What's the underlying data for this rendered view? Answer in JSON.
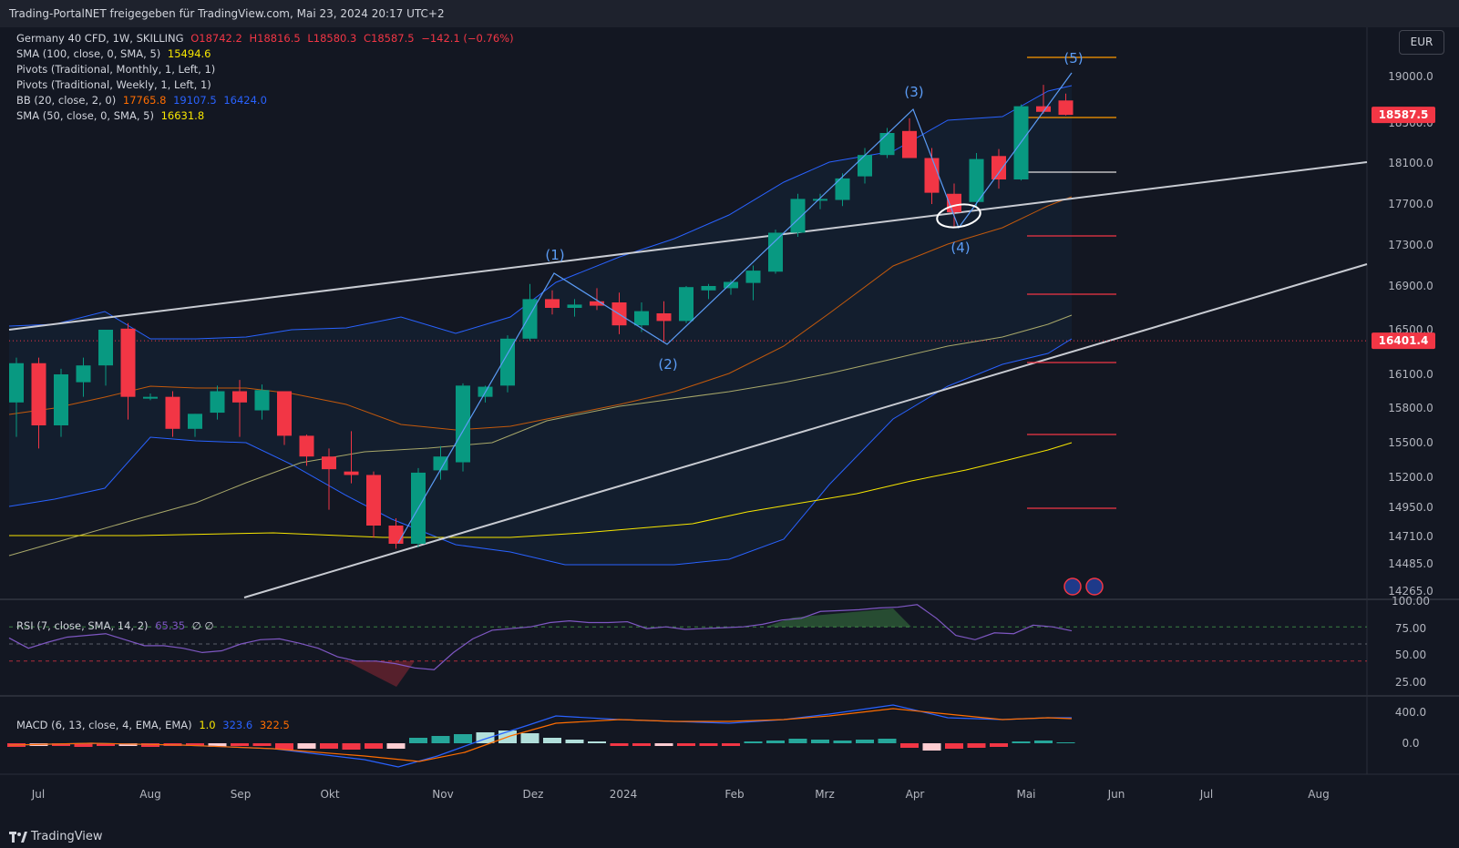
{
  "header": {
    "title": "Trading-PortalNET freigegeben für TradingView.com, Mai 23, 2024 20:17 UTC+2"
  },
  "currency_button": {
    "label": "EUR"
  },
  "legend": {
    "main": {
      "name": "Germany 40 CFD, 1W, SKILLING",
      "o": "O18742.2",
      "h": "H18816.5",
      "l": "L18580.3",
      "c": "C18587.5",
      "chg": "−142.1 (−0.76%)"
    },
    "sma100": {
      "label": "SMA (100, close, 0, SMA, 5)",
      "value": "15494.6"
    },
    "pivots_monthly": {
      "label": "Pivots (Traditional, Monthly, 1, Left, 1)"
    },
    "pivots_weekly": {
      "label": "Pivots (Traditional, Weekly, 1, Left, 1)"
    },
    "bb": {
      "label": "BB (20, close, 2, 0)",
      "basis": "17765.8",
      "upper": "19107.5",
      "lower": "16424.0"
    },
    "sma50": {
      "label": "SMA (50, close, 0, SMA, 5)",
      "value": "16631.8"
    },
    "rsi": {
      "label": "RSI (7, close, SMA, 14, 2)",
      "value": "65.35",
      "extra": "∅ ∅"
    },
    "macd": {
      "label": "MACD (6, 13, close, 4, EMA, EMA)",
      "hist": "1.0",
      "macd": "323.6",
      "signal": "322.5"
    }
  },
  "footer": {
    "brand": "TradingView"
  },
  "colors": {
    "up": "#089981",
    "down": "#f23645",
    "bb_upper": "#2962ff",
    "bb_basis": "#ff6d00",
    "sma100": "#f7e600",
    "sma50": "#a8a86a",
    "rsi": "#7e57c2",
    "macd": "#2962ff",
    "signal": "#ff6d00",
    "last_price_tag": "#f23645"
  },
  "chart_data": [
    {
      "type": "candlestick",
      "x_labels": [
        "Jul",
        "Aug",
        "Sep",
        "Okt",
        "Nov",
        "Dez",
        "2024",
        "Feb",
        "Mrz",
        "Apr",
        "Mai",
        "Jun",
        "Jul",
        "Aug"
      ],
      "y_ticks": [
        "19000.0",
        "18500.0",
        "18100.0",
        "17700.0",
        "17300.0",
        "16900.0",
        "16500.0",
        "16100.0",
        "15800.0",
        "15500.0",
        "15200.0",
        "14950.0",
        "14710.0",
        "14485.0",
        "14265.0"
      ],
      "price_tags": [
        {
          "label": "18587.5",
          "value": 18587.5,
          "color": "#f23645"
        },
        {
          "label": "16401.4",
          "value": 16401.4,
          "color": "#f23645"
        }
      ],
      "candles": [
        {
          "o": 15850,
          "h": 16250,
          "l": 15550,
          "c": 16200
        },
        {
          "o": 16200,
          "h": 16250,
          "l": 15450,
          "c": 15650
        },
        {
          "o": 15650,
          "h": 16150,
          "l": 15550,
          "c": 16100
        },
        {
          "o": 16030,
          "h": 16250,
          "l": 15900,
          "c": 16180
        },
        {
          "o": 16180,
          "h": 16480,
          "l": 16000,
          "c": 16500
        },
        {
          "o": 16510,
          "h": 16560,
          "l": 15700,
          "c": 15900
        },
        {
          "o": 15900,
          "h": 15930,
          "l": 15870,
          "c": 15900
        },
        {
          "o": 15900,
          "h": 15950,
          "l": 15550,
          "c": 15620
        },
        {
          "o": 15620,
          "h": 15750,
          "l": 15550,
          "c": 15750
        },
        {
          "o": 15760,
          "h": 16000,
          "l": 15700,
          "c": 15950
        },
        {
          "o": 15950,
          "h": 16050,
          "l": 15550,
          "c": 15850
        },
        {
          "o": 15780,
          "h": 16010,
          "l": 15700,
          "c": 15960
        },
        {
          "o": 15950,
          "h": 15950,
          "l": 15480,
          "c": 15560
        },
        {
          "o": 15560,
          "h": 15570,
          "l": 15300,
          "c": 15380
        },
        {
          "o": 15380,
          "h": 15450,
          "l": 14930,
          "c": 15270
        },
        {
          "o": 15250,
          "h": 15600,
          "l": 15150,
          "c": 15220
        },
        {
          "o": 15220,
          "h": 15250,
          "l": 14700,
          "c": 14800
        },
        {
          "o": 14800,
          "h": 14860,
          "l": 14610,
          "c": 14650
        },
        {
          "o": 14650,
          "h": 15280,
          "l": 14620,
          "c": 15240
        },
        {
          "o": 15260,
          "h": 15470,
          "l": 15180,
          "c": 15380
        },
        {
          "o": 15330,
          "h": 16020,
          "l": 15250,
          "c": 16000
        },
        {
          "o": 15900,
          "h": 16000,
          "l": 15850,
          "c": 15990
        },
        {
          "o": 16000,
          "h": 16450,
          "l": 15940,
          "c": 16420
        },
        {
          "o": 16420,
          "h": 16920,
          "l": 16400,
          "c": 16780
        },
        {
          "o": 16780,
          "h": 16860,
          "l": 16640,
          "c": 16700
        },
        {
          "o": 16700,
          "h": 16780,
          "l": 16620,
          "c": 16730
        },
        {
          "o": 16760,
          "h": 16880,
          "l": 16680,
          "c": 16720
        },
        {
          "o": 16750,
          "h": 16840,
          "l": 16460,
          "c": 16540
        },
        {
          "o": 16540,
          "h": 16750,
          "l": 16480,
          "c": 16670
        },
        {
          "o": 16650,
          "h": 16760,
          "l": 16390,
          "c": 16580
        },
        {
          "o": 16580,
          "h": 16900,
          "l": 16560,
          "c": 16890
        },
        {
          "o": 16860,
          "h": 16920,
          "l": 16780,
          "c": 16900
        },
        {
          "o": 16880,
          "h": 16960,
          "l": 16820,
          "c": 16940
        },
        {
          "o": 16930,
          "h": 17100,
          "l": 16770,
          "c": 17050
        },
        {
          "o": 17040,
          "h": 17450,
          "l": 17020,
          "c": 17420
        },
        {
          "o": 17420,
          "h": 17800,
          "l": 17380,
          "c": 17750
        },
        {
          "o": 17740,
          "h": 17800,
          "l": 17650,
          "c": 17750
        },
        {
          "o": 17740,
          "h": 18000,
          "l": 17680,
          "c": 17950
        },
        {
          "o": 17970,
          "h": 18250,
          "l": 17900,
          "c": 18180
        },
        {
          "o": 18180,
          "h": 18450,
          "l": 18150,
          "c": 18400
        },
        {
          "o": 18420,
          "h": 18550,
          "l": 18180,
          "c": 18150
        },
        {
          "o": 18150,
          "h": 18250,
          "l": 17700,
          "c": 17810
        },
        {
          "o": 17800,
          "h": 17900,
          "l": 17480,
          "c": 17620
        },
        {
          "o": 17720,
          "h": 18200,
          "l": 17680,
          "c": 18140
        },
        {
          "o": 18170,
          "h": 18240,
          "l": 17850,
          "c": 17940
        },
        {
          "o": 17940,
          "h": 18700,
          "l": 17930,
          "c": 18680
        },
        {
          "o": 18680,
          "h": 18910,
          "l": 18600,
          "c": 18620
        },
        {
          "o": 18742.2,
          "h": 18816.5,
          "l": 18580.3,
          "c": 18587.5
        }
      ],
      "annotations": [
        "(1)",
        "(2)",
        "(3)",
        "(4)",
        "(5)"
      ]
    },
    {
      "type": "line",
      "title": "RSI (7, close, SMA, 14, 2)",
      "y_ticks": [
        "100.00",
        "75.00",
        "50.00",
        "25.00"
      ],
      "levels": [
        70,
        50,
        30
      ],
      "values": [
        57,
        45,
        52,
        58,
        60,
        62,
        55,
        48,
        48,
        45,
        40,
        42,
        50,
        55,
        56,
        51,
        45,
        35,
        30,
        30,
        27,
        22,
        20,
        40,
        56,
        66,
        68,
        70,
        75,
        77,
        75,
        75,
        76,
        68,
        70,
        67,
        68,
        69,
        70,
        73,
        78,
        80,
        88,
        89,
        90,
        92,
        93,
        96,
        80,
        60,
        55,
        63,
        62,
        72,
        70,
        65.35
      ]
    },
    {
      "type": "line+bar",
      "title": "MACD (6, 13, close, 4, EMA, EMA)",
      "y_ticks": [
        "400.0",
        "0.0"
      ]
    }
  ]
}
